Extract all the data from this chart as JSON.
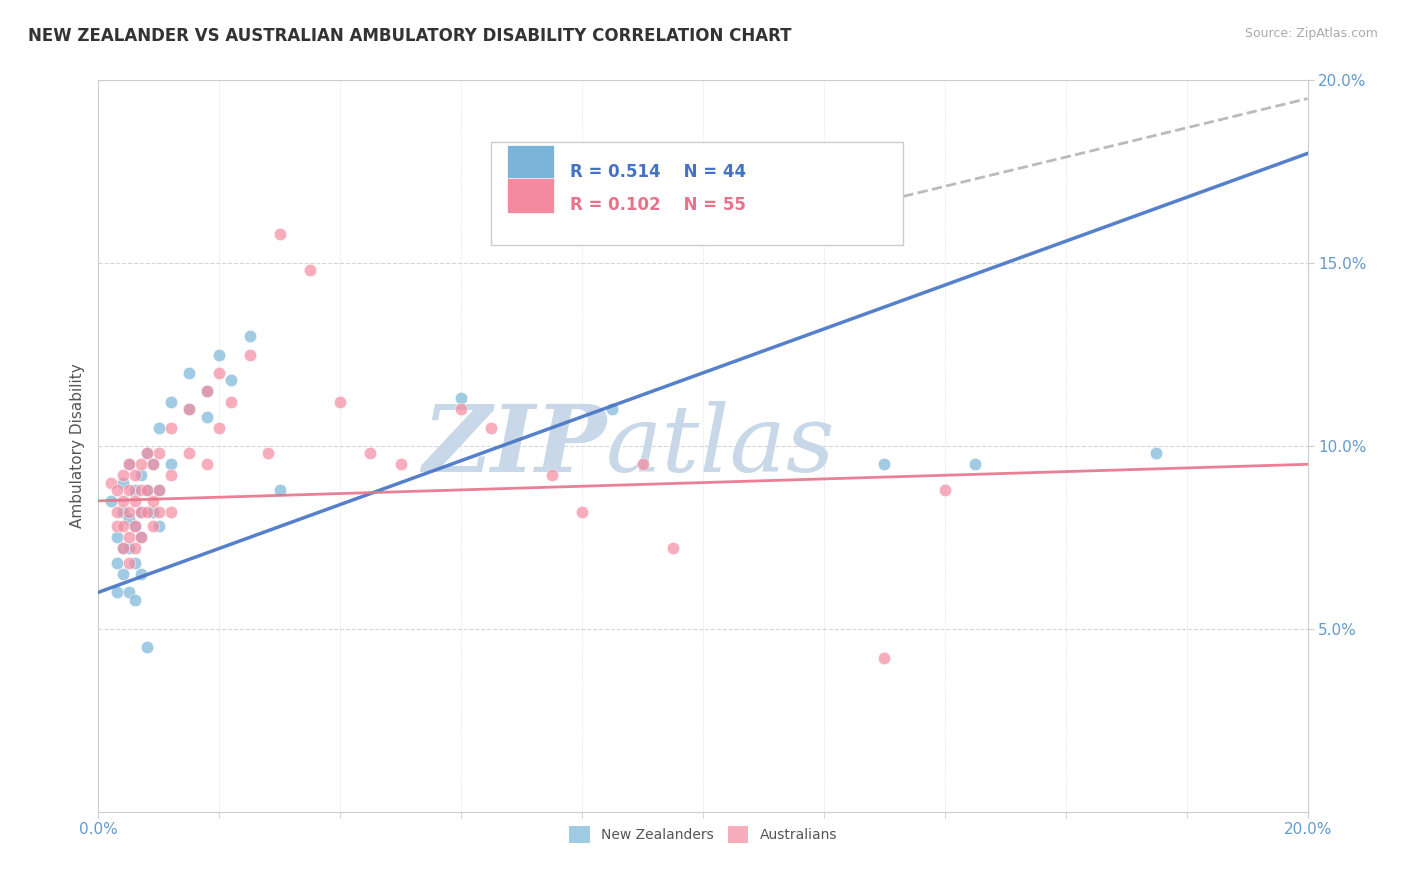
{
  "title": "NEW ZEALANDER VS AUSTRALIAN AMBULATORY DISABILITY CORRELATION CHART",
  "source": "Source: ZipAtlas.com",
  "ylabel": "Ambulatory Disability",
  "xlim": [
    0.0,
    0.2
  ],
  "ylim": [
    0.0,
    0.2
  ],
  "nz_R": 0.514,
  "nz_N": 44,
  "au_R": 0.102,
  "au_N": 55,
  "nz_color": "#7ab4d8",
  "au_color": "#f48aa0",
  "nz_line_color": "#4472c4",
  "au_line_color": "#e8728a",
  "gray_dash_color": "#aaaaaa",
  "nz_scatter": [
    [
      0.002,
      0.085
    ],
    [
      0.003,
      0.075
    ],
    [
      0.003,
      0.068
    ],
    [
      0.003,
      0.06
    ],
    [
      0.004,
      0.09
    ],
    [
      0.004,
      0.082
    ],
    [
      0.004,
      0.072
    ],
    [
      0.004,
      0.065
    ],
    [
      0.005,
      0.095
    ],
    [
      0.005,
      0.08
    ],
    [
      0.005,
      0.072
    ],
    [
      0.005,
      0.06
    ],
    [
      0.006,
      0.088
    ],
    [
      0.006,
      0.078
    ],
    [
      0.006,
      0.068
    ],
    [
      0.006,
      0.058
    ],
    [
      0.007,
      0.092
    ],
    [
      0.007,
      0.082
    ],
    [
      0.007,
      0.075
    ],
    [
      0.007,
      0.065
    ],
    [
      0.008,
      0.098
    ],
    [
      0.008,
      0.088
    ],
    [
      0.008,
      0.045
    ],
    [
      0.009,
      0.095
    ],
    [
      0.009,
      0.082
    ],
    [
      0.01,
      0.105
    ],
    [
      0.01,
      0.088
    ],
    [
      0.01,
      0.078
    ],
    [
      0.012,
      0.112
    ],
    [
      0.012,
      0.095
    ],
    [
      0.015,
      0.12
    ],
    [
      0.015,
      0.11
    ],
    [
      0.018,
      0.115
    ],
    [
      0.018,
      0.108
    ],
    [
      0.02,
      0.125
    ],
    [
      0.022,
      0.118
    ],
    [
      0.025,
      0.13
    ],
    [
      0.03,
      0.088
    ],
    [
      0.06,
      0.113
    ],
    [
      0.085,
      0.11
    ],
    [
      0.11,
      0.17
    ],
    [
      0.13,
      0.095
    ],
    [
      0.145,
      0.095
    ],
    [
      0.175,
      0.098
    ]
  ],
  "au_scatter": [
    [
      0.002,
      0.09
    ],
    [
      0.003,
      0.088
    ],
    [
      0.003,
      0.082
    ],
    [
      0.003,
      0.078
    ],
    [
      0.004,
      0.092
    ],
    [
      0.004,
      0.085
    ],
    [
      0.004,
      0.078
    ],
    [
      0.004,
      0.072
    ],
    [
      0.005,
      0.095
    ],
    [
      0.005,
      0.088
    ],
    [
      0.005,
      0.082
    ],
    [
      0.005,
      0.075
    ],
    [
      0.005,
      0.068
    ],
    [
      0.006,
      0.092
    ],
    [
      0.006,
      0.085
    ],
    [
      0.006,
      0.078
    ],
    [
      0.006,
      0.072
    ],
    [
      0.007,
      0.095
    ],
    [
      0.007,
      0.088
    ],
    [
      0.007,
      0.082
    ],
    [
      0.007,
      0.075
    ],
    [
      0.008,
      0.098
    ],
    [
      0.008,
      0.088
    ],
    [
      0.008,
      0.082
    ],
    [
      0.009,
      0.095
    ],
    [
      0.009,
      0.085
    ],
    [
      0.009,
      0.078
    ],
    [
      0.01,
      0.098
    ],
    [
      0.01,
      0.088
    ],
    [
      0.01,
      0.082
    ],
    [
      0.012,
      0.105
    ],
    [
      0.012,
      0.092
    ],
    [
      0.012,
      0.082
    ],
    [
      0.015,
      0.11
    ],
    [
      0.015,
      0.098
    ],
    [
      0.018,
      0.115
    ],
    [
      0.018,
      0.095
    ],
    [
      0.02,
      0.12
    ],
    [
      0.02,
      0.105
    ],
    [
      0.022,
      0.112
    ],
    [
      0.025,
      0.125
    ],
    [
      0.028,
      0.098
    ],
    [
      0.03,
      0.158
    ],
    [
      0.035,
      0.148
    ],
    [
      0.04,
      0.112
    ],
    [
      0.045,
      0.098
    ],
    [
      0.05,
      0.095
    ],
    [
      0.06,
      0.11
    ],
    [
      0.065,
      0.105
    ],
    [
      0.075,
      0.092
    ],
    [
      0.08,
      0.082
    ],
    [
      0.09,
      0.095
    ],
    [
      0.095,
      0.072
    ],
    [
      0.13,
      0.042
    ],
    [
      0.14,
      0.088
    ]
  ],
  "background_color": "#ffffff",
  "grid_color": "#cccccc",
  "tick_color": "#6699cc",
  "watermark_zip": "ZIP",
  "watermark_atlas": "atlas",
  "watermark_color": "#c8d8e8"
}
